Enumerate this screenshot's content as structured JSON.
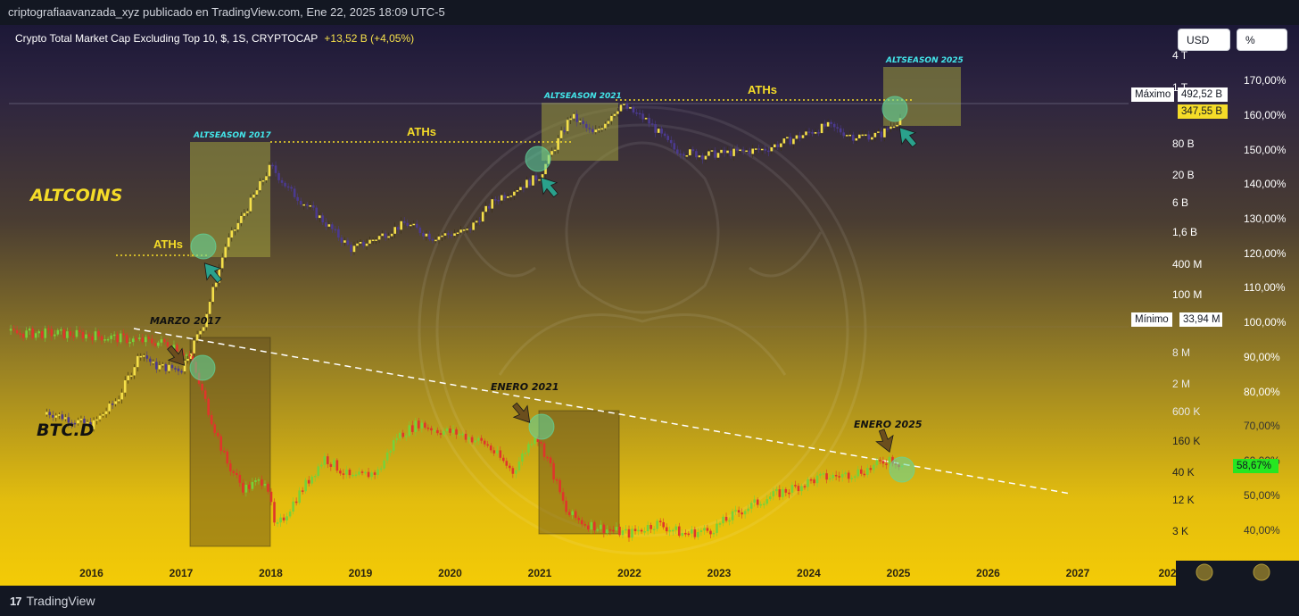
{
  "header": {
    "publisher_line": "criptografiaavanzada_xyz publicado en TradingView.com, Ene 22, 2025 18:09 UTC-5"
  },
  "legend": {
    "symbol": "Crypto Total Market Cap Excluding Top 10, $, 1S, CRYPTOCAP",
    "change": "+13,52 B (+4,05%)"
  },
  "toolbar": {
    "usd_label": "USD",
    "pct_label": "%"
  },
  "footer": {
    "brand_logo": "17",
    "brand": "TradingView"
  },
  "price_tags": {
    "max_label": "Máximo",
    "max_value": "492,52 B",
    "last_value": "347,55 B",
    "min_label": "Mínimo",
    "min_value": "33,94 M",
    "btcd_value": "58,67%"
  },
  "colors": {
    "bg_top": "#1c1837",
    "bg_bottom": "#f4cb06",
    "alt_candle_up": "#f5e04a",
    "alt_candle_down": "#4b3a8f",
    "btc_up": "#76d13a",
    "btc_down": "#e0352b",
    "label_yellow": "#f5dc28",
    "label_cyan": "#43e6ea",
    "circle": "#5fd8a0",
    "arrow_teal": "#2aa18c",
    "arrow_brown": "#6b4e1d",
    "btcd_tag": "#26e621"
  },
  "chart_data": [
    {
      "type": "line",
      "name": "ALTCOINS",
      "yscale": "log",
      "axis_side": "right-inner",
      "ytick_labels": [
        "4 T",
        "1 T",
        "80 B",
        "20 B",
        "6 B",
        "1,6 B",
        "400 M",
        "100 M",
        "8 M",
        "2 M",
        "600 K",
        "160 K",
        "40 K",
        "12 K",
        "3 K"
      ],
      "x": [
        2015.5,
        2016.0,
        2016.3,
        2016.55,
        2016.7,
        2017.0,
        2017.25,
        2017.5,
        2017.75,
        2018.0,
        2018.2,
        2018.5,
        2018.9,
        2019.2,
        2019.5,
        2019.8,
        2020.2,
        2020.5,
        2020.8,
        2021.0,
        2021.35,
        2021.6,
        2021.9,
        2022.2,
        2022.5,
        2022.8,
        2023.2,
        2023.5,
        2023.9,
        2024.2,
        2024.5,
        2024.8,
        2025.05
      ],
      "y": [
        60000000,
        40000000,
        90000000,
        350000000,
        230000000,
        210000000,
        800000000,
        8000000000,
        25000000000,
        80000000000,
        40000000000,
        20000000000,
        7000000000,
        10000000000,
        15000000000,
        10000000000,
        12000000000,
        30000000000,
        45000000000,
        60000000000,
        350000000000,
        200000000000,
        480000000000,
        300000000000,
        130000000000,
        110000000000,
        120000000000,
        130000000000,
        190000000000,
        260000000000,
        190000000000,
        200000000000,
        347550000000
      ]
    },
    {
      "type": "line",
      "name": "BTC.D",
      "yscale": "linear",
      "axis_side": "right",
      "ytick_labels": [
        "170,00%",
        "160,00%",
        "150,00%",
        "140,00%",
        "130,00%",
        "120,00%",
        "110,00%",
        "100,00%",
        "90,00%",
        "80,00%",
        "70,00%",
        "60,00%",
        "50,00%",
        "40,00%"
      ],
      "ylim": [
        36,
        170
      ],
      "x": [
        2015.1,
        2015.5,
        2016.0,
        2016.5,
        2016.9,
        2017.1,
        2017.3,
        2017.5,
        2017.7,
        2017.95,
        2018.05,
        2018.3,
        2018.6,
        2018.9,
        2019.2,
        2019.4,
        2019.65,
        2019.85,
        2020.1,
        2020.4,
        2020.7,
        2020.95,
        2021.1,
        2021.3,
        2021.5,
        2021.8,
        2022.0,
        2022.3,
        2022.6,
        2022.9,
        2023.2,
        2023.5,
        2023.8,
        2024.1,
        2024.4,
        2024.7,
        2024.9,
        2025.05
      ],
      "y": [
        97,
        97,
        96.5,
        95,
        94,
        90,
        75,
        60,
        52,
        55,
        40,
        50,
        61,
        55,
        57,
        67,
        71,
        69,
        68,
        65,
        57,
        68,
        60,
        45,
        42,
        40,
        39,
        42,
        39,
        40,
        45,
        49,
        52,
        55,
        56,
        58,
        61,
        58.67
      ]
    }
  ],
  "x_axis": {
    "tick_labels": [
      "2016",
      "2017",
      "2018",
      "2019",
      "2020",
      "2021",
      "2022",
      "2023",
      "2024",
      "2025",
      "2026",
      "2027",
      "202"
    ]
  },
  "annotations": {
    "altseason_2017": "ALTSEASON 2017",
    "altseason_2021": "ALTSEASON 2021",
    "altseason_2025": "ALTSEASON 2025",
    "aths_label": "ATHs",
    "altcoins_label": "ALTCOINS",
    "btcd_label": "BTC.D",
    "marzo_2017": "MARZO 2017",
    "enero_2021": "ENERO 2021",
    "enero_2025": "ENERO 2025"
  }
}
